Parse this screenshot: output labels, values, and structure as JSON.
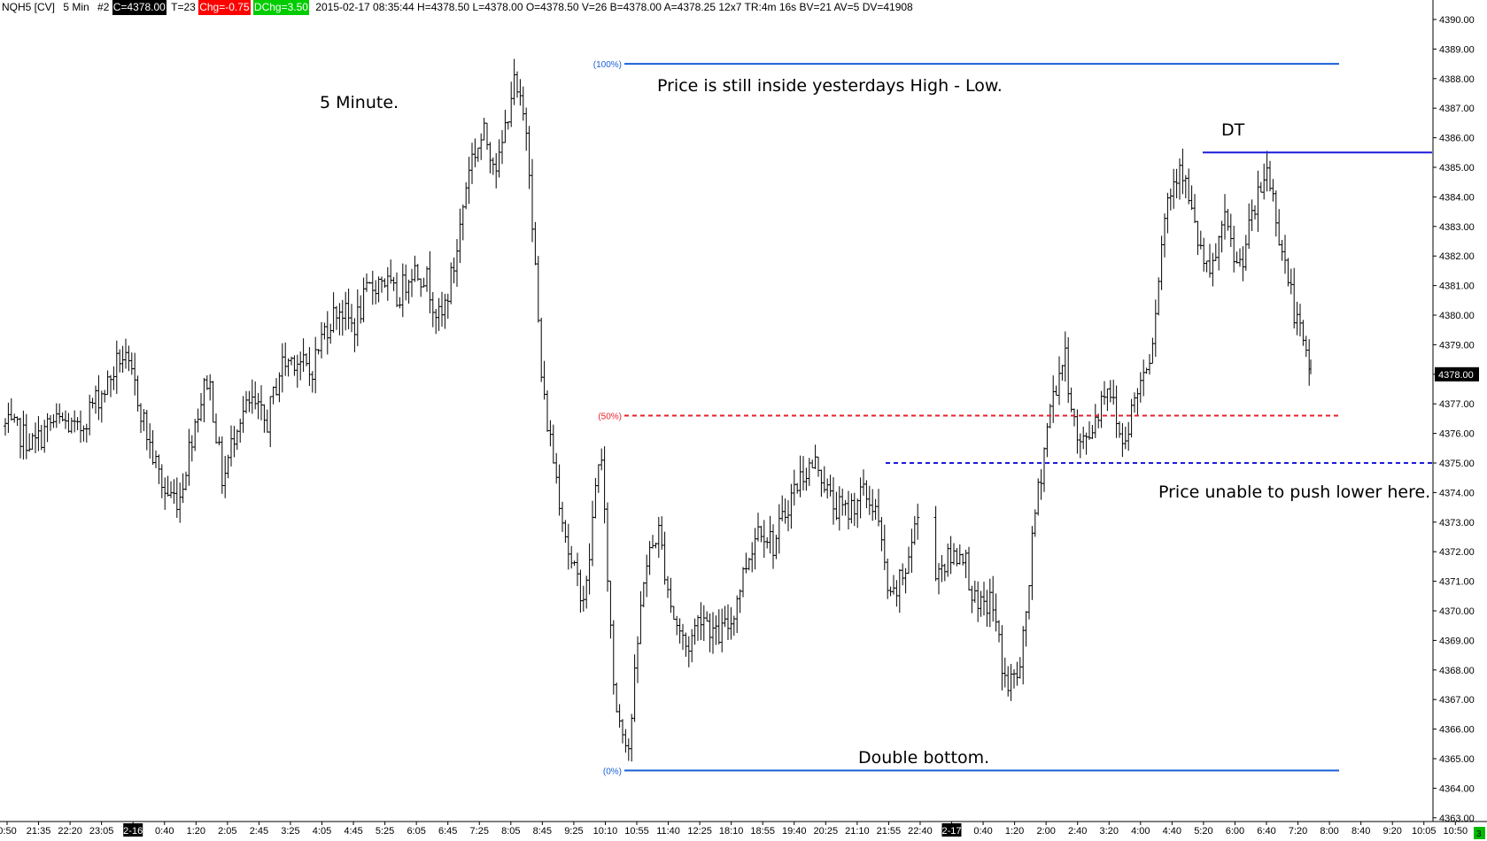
{
  "header": {
    "symbol": "NQH5 [CV]",
    "interval": "5 Min",
    "chart_num": "#2",
    "close_tag": "C=4378.00",
    "ticks": "T=23",
    "chg_tag": "Chg=-0.75",
    "dchg_tag": "DChg=3.50",
    "stats": "2015-02-17 08:35:44 H=4378.50 L=4378.00 O=4378.50 V=26 B=4378.00 A=4378.25 12x7 TR:4m 16s BV=21 AV=5 DV=41908"
  },
  "colors": {
    "close_tag_bg": "#000000",
    "chg_bg": "#ff0000",
    "dchg_bg": "#00cc00",
    "fib_line": "#1a5fd6",
    "fib_mid": "#e8202a",
    "support_line": "#1c1cdb",
    "bar": "#000000",
    "last_price_bg": "#000000",
    "corner_bg": "#00bb00"
  },
  "annotations": {
    "timeframe": "5 Minute.",
    "range_note": "Price is still inside yesterdays High - Low.",
    "dt": "DT",
    "support_note": "Price unable to push lower here.",
    "double_bottom": "Double bottom."
  },
  "fib_labels": [
    "(100%)",
    "(50%)",
    "(0%)"
  ],
  "last_price_tag": "4378.00",
  "corner_badge": "3",
  "chart_data": {
    "type": "ohlc",
    "ylim": [
      4362.75,
      4390.5
    ],
    "y_ticks": [
      "4363.00",
      "4364.00",
      "4365.00",
      "4366.00",
      "4367.00",
      "4368.00",
      "4369.00",
      "4370.00",
      "4371.00",
      "4372.00",
      "4373.00",
      "4374.00",
      "4375.00",
      "4376.00",
      "4377.00",
      "4378.00",
      "4379.00",
      "4380.00",
      "4381.00",
      "4382.00",
      "4383.00",
      "4384.00",
      "4385.00",
      "4386.00",
      "4387.00",
      "4388.00",
      "4389.00",
      "4390.00"
    ],
    "x_ticks": [
      "0:50",
      "21:35",
      "22:20",
      "23:05",
      "2-16",
      "0:40",
      "1:20",
      "2:05",
      "2:45",
      "3:25",
      "4:05",
      "4:45",
      "5:25",
      "6:05",
      "6:45",
      "7:25",
      "8:05",
      "8:45",
      "9:25",
      "10:10",
      "10:55",
      "11:40",
      "12:25",
      "18:10",
      "18:55",
      "19:40",
      "20:25",
      "21:10",
      "21:55",
      "22:40",
      "2-17",
      "0:40",
      "1:20",
      "2:00",
      "2:40",
      "3:20",
      "4:00",
      "4:40",
      "5:20",
      "6:00",
      "6:40",
      "7:20",
      "8:00",
      "8:40",
      "9:20",
      "10:05",
      "10:50"
    ],
    "date_markers": [
      "2-16",
      "2-17"
    ],
    "price_path_keypoints": [
      4376.25,
      4376.0,
      4375.6,
      4376.3,
      4376.4,
      4376.0,
      4377.0,
      4377.6,
      4378.7,
      4377.5,
      4375.5,
      4374.0,
      4373.8,
      4376.3,
      4378.0,
      4374.3,
      4376.5,
      4377.0,
      4376.3,
      4378.3,
      4378.6,
      4378.0,
      4379.5,
      4380.3,
      4379.6,
      4380.8,
      4381.3,
      4380.5,
      4381.6,
      4381.3,
      4379.7,
      4381.8,
      4385.2,
      4386.1,
      4385.0,
      4387.9,
      4386.2,
      4377.5,
      4374.5,
      4371.5,
      4370.4,
      4375.8,
      4367.0,
      4365.4,
      4371.2,
      4372.8,
      4369.9,
      4368.7,
      4370.0,
      4369.1,
      4369.6,
      4371.5,
      4373.0,
      4372.2,
      4373.7,
      4374.7,
      4375.0,
      4373.6,
      4373.3,
      4374.0,
      4373.5,
      4370.2,
      4371.3,
      4373.4,
      4371.4,
      4371.7,
      4372.1,
      4369.9,
      4370.4,
      4367.4,
      4368.0,
      4373.3,
      4376.8,
      4378.7,
      4375.4,
      4376.3,
      4377.8,
      4375.6,
      4377.4,
      4378.9,
      4383.7,
      4385.3,
      4382.9,
      4381.1,
      4383.2,
      4381.5,
      4383.3,
      4385.0,
      4382.3,
      4379.8,
      4378.0
    ],
    "levels": [
      {
        "label": "(100%)",
        "value": 4388.5
      },
      {
        "label": "(50%)",
        "value": 4376.6
      },
      {
        "label": "(0%)",
        "value": 4364.6
      },
      {
        "label": "DT",
        "value": 4385.5
      },
      {
        "label": "support",
        "value": 4375.0
      }
    ]
  }
}
